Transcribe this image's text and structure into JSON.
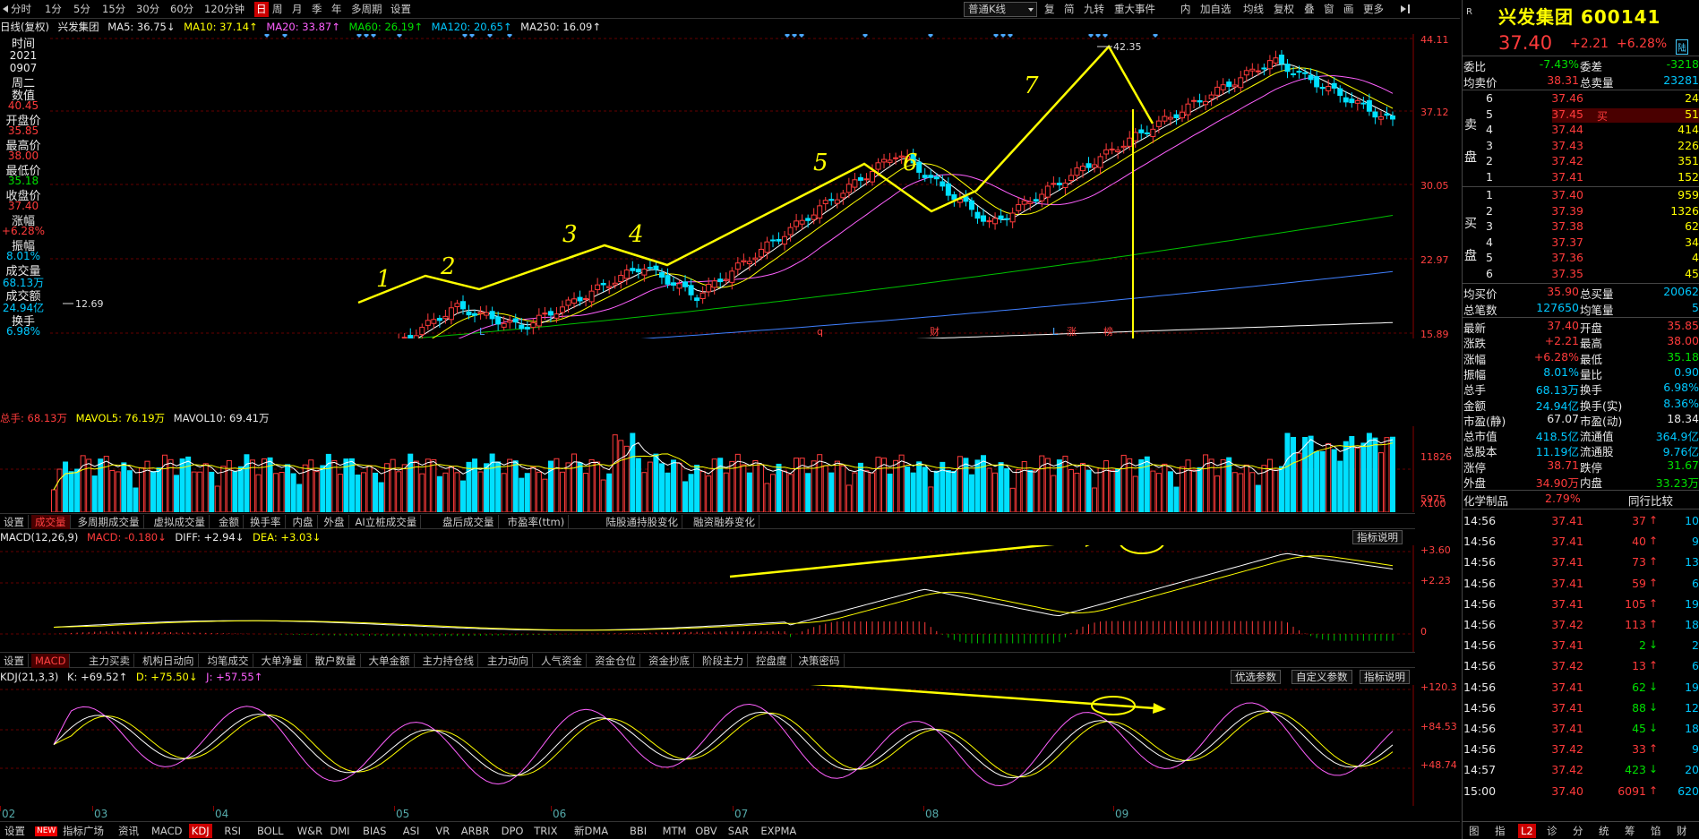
{
  "toolbar": {
    "left": [
      "分时",
      "1分",
      "5分",
      "15分",
      "30分",
      "60分",
      "120分钟",
      "日",
      "周",
      "月",
      "季",
      "年",
      "多周期",
      "设置"
    ],
    "active": "日",
    "select": "普通K线",
    "right": [
      "复",
      "简",
      "九转",
      "重大事件",
      "内",
      "加自选",
      "均线",
      "复权",
      "叠",
      "窗",
      "画",
      "更多"
    ]
  },
  "info": {
    "label": "日线(复权)",
    "name": "兴发集团",
    "ma5": "MA5: 36.75↓",
    "ma10": "MA10: 37.14↑",
    "ma20": "MA20: 33.87↑",
    "ma60": "MA60: 26.19↑",
    "ma120": "MA120: 20.65↑",
    "ma250": "MA250: 16.09↑"
  },
  "left": {
    "time_label": "时间",
    "year": "2021",
    "date": "0907",
    "weekday": "周二",
    "value_label": "数值",
    "value": "40.45",
    "open_label": "开盘价",
    "open": "35.85",
    "high_label": "最高价",
    "high": "38.00",
    "low_label": "最低价",
    "low": "35.18",
    "close_label": "收盘价",
    "close": "37.40",
    "chg_label": "涨幅",
    "chg": "+6.28%",
    "amp_label": "振幅",
    "amp": "8.01%",
    "vol_label": "成交量",
    "vol": "68.13万",
    "amt_label": "成交额",
    "amt": "24.94亿",
    "turn_label": "换手",
    "turn": "6.98%"
  },
  "price_axis": [
    "44.11",
    "37.12",
    "30.05",
    "22.97",
    "15.89"
  ],
  "annotations": {
    "high": "42.35",
    "low": "12.69",
    "waves": [
      "1",
      "2",
      "3",
      "4",
      "5",
      "6",
      "7"
    ],
    "markers": [
      "L",
      "q",
      "财",
      "L",
      "涨",
      "榜"
    ]
  },
  "vol": {
    "head": {
      "total": "总手: 68.13万",
      "mavol5": "MAVOL5: 76.19万",
      "mavol10": "MAVOL10: 69.41万"
    },
    "axis": [
      "11826",
      "5975",
      "X100"
    ],
    "tabs": [
      "设置",
      "成交量",
      "多周期成交量",
      "虚拟成交量",
      "金额",
      "换手率",
      "内盘",
      "外盘",
      "AI立桩成交量",
      "盘后成交量",
      "市盈率(ttm)",
      "陆股通持股变化",
      "融资融券变化"
    ],
    "active": "成交量"
  },
  "macd": {
    "head": {
      "name": "MACD(12,26,9)",
      "macd": "MACD: -0.180↓",
      "diff": "DIFF: +2.94↓",
      "dea": "DEA: +3.03↓"
    },
    "axis": [
      "+3.60",
      "+2.23",
      "0"
    ],
    "explain": "指标说明",
    "tabs": [
      "设置",
      "MACD",
      "主力买卖",
      "机构日动向",
      "均笔成交",
      "大单净量",
      "散户数量",
      "大单金额",
      "主力持仓线",
      "主力动向",
      "人气资金",
      "资金仓位",
      "资金抄底",
      "阶段主力",
      "控盘度",
      "决策密码"
    ],
    "active": "MACD"
  },
  "kdj": {
    "head": {
      "name": "KDJ(21,3,3)",
      "k": "K: +69.52↑",
      "d": "D: +75.50↓",
      "j": "J: +57.55↑"
    },
    "axis": [
      "+120.3",
      "+84.53",
      "+48.74"
    ],
    "buttons": [
      "优选参数",
      "自定义参数",
      "指标说明"
    ]
  },
  "dates": [
    "02",
    "03",
    "04",
    "05",
    "06",
    "07",
    "08",
    "09"
  ],
  "bottom": {
    "items": [
      "设置",
      "NEW",
      "指标广场",
      "资讯",
      "MACD",
      "KDJ",
      "RSI",
      "BOLL",
      "W&R",
      "DMI",
      "BIAS",
      "ASI",
      "VR",
      "ARBR",
      "DPO",
      "TRIX",
      "新DMA",
      "BBI",
      "MTM",
      "OBV",
      "SAR",
      "EXPMA"
    ],
    "active": "KDJ"
  },
  "quote": {
    "title": "兴发集团 600141",
    "price": "37.40",
    "change": "+2.21",
    "pct": "+6.28%",
    "tag": "陆",
    "webi_label": "委比",
    "webi": "-7.43%",
    "wecha_label": "委差",
    "wecha": "-3218",
    "avgsell_label": "均卖价",
    "avgsell": "38.31",
    "totalsell_label": "总卖量",
    "totalsell": "23281",
    "sell_side": "卖盘",
    "asks": [
      [
        "6",
        "37.46",
        "24"
      ],
      [
        "5",
        "37.45",
        "51"
      ],
      [
        "4",
        "37.44",
        "414"
      ],
      [
        "3",
        "37.43",
        "226"
      ],
      [
        "2",
        "37.42",
        "351"
      ],
      [
        "1",
        "37.41",
        "152"
      ]
    ],
    "buy_side": "买盘",
    "bids": [
      [
        "1",
        "37.40",
        "959"
      ],
      [
        "2",
        "37.39",
        "1326"
      ],
      [
        "3",
        "37.38",
        "62"
      ],
      [
        "4",
        "37.37",
        "34"
      ],
      [
        "5",
        "37.36",
        "4"
      ],
      [
        "6",
        "37.35",
        "45"
      ]
    ],
    "buy_label": "买",
    "avgbuy_label": "均买价",
    "avgbuy": "35.90",
    "totalbuy_label": "总买量",
    "totalbuy": "20062",
    "trades_label": "总笔数",
    "trades": "127650",
    "avgtrade_label": "均笔量",
    "avgtrade": "5",
    "stats": [
      [
        "最新",
        "37.40",
        "开盘",
        "35.85"
      ],
      [
        "涨跌",
        "+2.21",
        "最高",
        "38.00"
      ],
      [
        "涨幅",
        "+6.28%",
        "最低",
        "35.18"
      ],
      [
        "振幅",
        "8.01%",
        "量比",
        "0.90"
      ],
      [
        "总手",
        "68.13万",
        "换手",
        "6.98%"
      ],
      [
        "金额",
        "24.94亿",
        "换手(实)",
        "8.36%"
      ],
      [
        "市盈(静)",
        "67.07",
        "市盈(动)",
        "18.34"
      ],
      [
        "总市值",
        "418.5亿",
        "流通值",
        "364.9亿"
      ],
      [
        "总股本",
        "11.19亿",
        "流通股",
        "9.76亿"
      ],
      [
        "涨停",
        "38.71",
        "跌停",
        "31.67"
      ],
      [
        "外盘",
        "34.90万",
        "内盘",
        "33.23万"
      ]
    ],
    "sector": "化学制品",
    "sector_pct": "2.79%",
    "compare": "同行比较",
    "ticks": [
      [
        "14:56",
        "37.41",
        "37",
        "up",
        "10"
      ],
      [
        "14:56",
        "37.41",
        "40",
        "up",
        "9"
      ],
      [
        "14:56",
        "37.41",
        "73",
        "up",
        "13"
      ],
      [
        "14:56",
        "37.41",
        "59",
        "up",
        "6"
      ],
      [
        "14:56",
        "37.41",
        "105",
        "up",
        "19"
      ],
      [
        "14:56",
        "37.42",
        "113",
        "up",
        "18"
      ],
      [
        "14:56",
        "37.41",
        "2",
        "down",
        "2"
      ],
      [
        "14:56",
        "37.42",
        "13",
        "up",
        "6"
      ],
      [
        "14:56",
        "37.41",
        "62",
        "down",
        "19"
      ],
      [
        "14:56",
        "37.41",
        "88",
        "down",
        "12"
      ],
      [
        "14:56",
        "37.41",
        "45",
        "down",
        "18"
      ],
      [
        "14:56",
        "37.42",
        "33",
        "up",
        "9"
      ],
      [
        "14:57",
        "37.42",
        "423",
        "down",
        "20"
      ],
      [
        "15:00",
        "37.40",
        "6091",
        "up",
        "620"
      ]
    ],
    "bottom_tabs": [
      "图",
      "指",
      "L2",
      "诊",
      "分",
      "统",
      "筹",
      "馅",
      "财"
    ],
    "bottom_active": "L2"
  },
  "colors": {
    "up": "#ff3b3b",
    "down": "#00e0ff",
    "ma5": "#ffffff",
    "ma10": "#ffff00",
    "ma20": "#ff60ff",
    "ma60": "#00c000",
    "ma120": "#4080ff",
    "ma250": "#ffffff",
    "annot": "#ffff00"
  }
}
